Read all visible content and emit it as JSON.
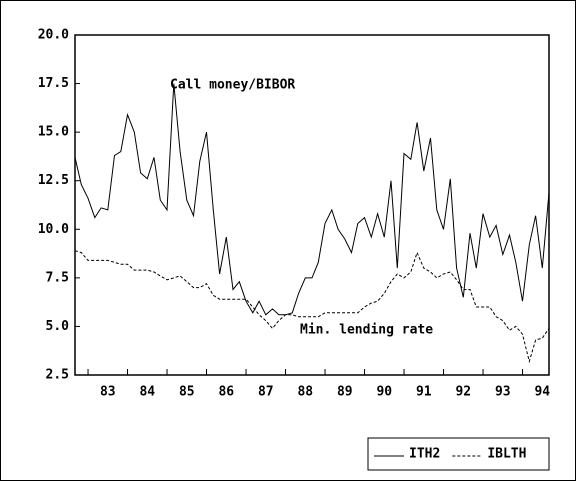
{
  "chart_data": {
    "type": "line",
    "annotations": [
      "Call money/BIBOR",
      "Min. lending rate"
    ],
    "x": [
      82.67,
      82.83,
      83.0,
      83.17,
      83.33,
      83.5,
      83.67,
      83.83,
      84.0,
      84.17,
      84.33,
      84.5,
      84.67,
      84.83,
      85.0,
      85.17,
      85.33,
      85.5,
      85.67,
      85.83,
      86.0,
      86.17,
      86.33,
      86.5,
      86.67,
      86.83,
      87.0,
      87.17,
      87.33,
      87.5,
      87.67,
      87.83,
      88.0,
      88.17,
      88.33,
      88.5,
      88.67,
      88.83,
      89.0,
      89.17,
      89.33,
      89.5,
      89.67,
      89.83,
      90.0,
      90.17,
      90.33,
      90.5,
      90.67,
      90.83,
      91.0,
      91.17,
      91.33,
      91.5,
      91.67,
      91.83,
      92.0,
      92.17,
      92.33,
      92.5,
      92.67,
      92.83,
      93.0,
      93.17,
      93.33,
      93.5,
      93.67,
      93.83,
      94.0,
      94.17,
      94.33,
      94.5,
      94.67
    ],
    "series": [
      {
        "name": "ITH2",
        "color": "#000000",
        "dash": "solid",
        "values": [
          13.7,
          12.3,
          11.6,
          10.6,
          11.1,
          11.0,
          13.8,
          14.0,
          15.9,
          15.0,
          12.9,
          12.6,
          13.7,
          11.5,
          11.0,
          17.5,
          14.0,
          11.5,
          10.7,
          13.5,
          15.0,
          11.0,
          7.7,
          9.6,
          6.9,
          7.3,
          6.3,
          5.7,
          6.3,
          5.6,
          5.9,
          5.6,
          5.6,
          5.7,
          6.7,
          7.5,
          7.5,
          8.3,
          10.3,
          11.0,
          10.0,
          9.5,
          8.8,
          10.3,
          10.6,
          9.6,
          10.8,
          9.6,
          12.5,
          8.0,
          13.9,
          13.6,
          15.5,
          13.0,
          14.7,
          11.0,
          10.0,
          12.6,
          8.0,
          6.5,
          9.8,
          8.0,
          10.8,
          9.6,
          10.2,
          8.7,
          9.7,
          8.3,
          6.3,
          9.2,
          10.7,
          8.0,
          11.9
        ]
      },
      {
        "name": "IBLTH",
        "color": "#000000",
        "dash": "dashed",
        "values": [
          8.9,
          8.8,
          8.4,
          8.4,
          8.4,
          8.4,
          8.3,
          8.2,
          8.2,
          7.9,
          7.9,
          7.9,
          7.8,
          7.6,
          7.4,
          7.5,
          7.6,
          7.3,
          7.0,
          7.0,
          7.2,
          6.6,
          6.4,
          6.4,
          6.4,
          6.4,
          6.4,
          6.0,
          5.6,
          5.3,
          4.9,
          5.3,
          5.6,
          5.6,
          5.5,
          5.5,
          5.5,
          5.5,
          5.7,
          5.7,
          5.7,
          5.7,
          5.7,
          5.7,
          6.0,
          6.2,
          6.3,
          6.7,
          7.3,
          7.7,
          7.5,
          7.8,
          8.8,
          8.0,
          7.8,
          7.5,
          7.7,
          7.8,
          7.4,
          6.9,
          6.9,
          6.0,
          6.0,
          6.0,
          5.5,
          5.3,
          4.8,
          5.0,
          4.6,
          3.2,
          4.3,
          4.4,
          4.9
        ]
      }
    ],
    "xlim": [
      82.67,
      94.67
    ],
    "xticks": [
      {
        "value": 83.5,
        "label": "83"
      },
      {
        "value": 84.5,
        "label": "84"
      },
      {
        "value": 85.5,
        "label": "85"
      },
      {
        "value": 86.5,
        "label": "86"
      },
      {
        "value": 87.5,
        "label": "87"
      },
      {
        "value": 88.5,
        "label": "88"
      },
      {
        "value": 89.5,
        "label": "89"
      },
      {
        "value": 90.5,
        "label": "90"
      },
      {
        "value": 91.5,
        "label": "91"
      },
      {
        "value": 92.5,
        "label": "92"
      },
      {
        "value": 93.5,
        "label": "93"
      },
      {
        "value": 94.5,
        "label": "94"
      }
    ],
    "ylim": [
      2.5,
      20
    ],
    "yticks": [
      2.5,
      {
        "value": 5,
        "label": "5.0"
      },
      7.5,
      {
        "value": 10,
        "label": "10.0"
      },
      12.5,
      {
        "value": 15,
        "label": "15.0"
      },
      17.5,
      {
        "value": 20,
        "label": "20.0"
      }
    ],
    "legend": "bottom-right"
  }
}
